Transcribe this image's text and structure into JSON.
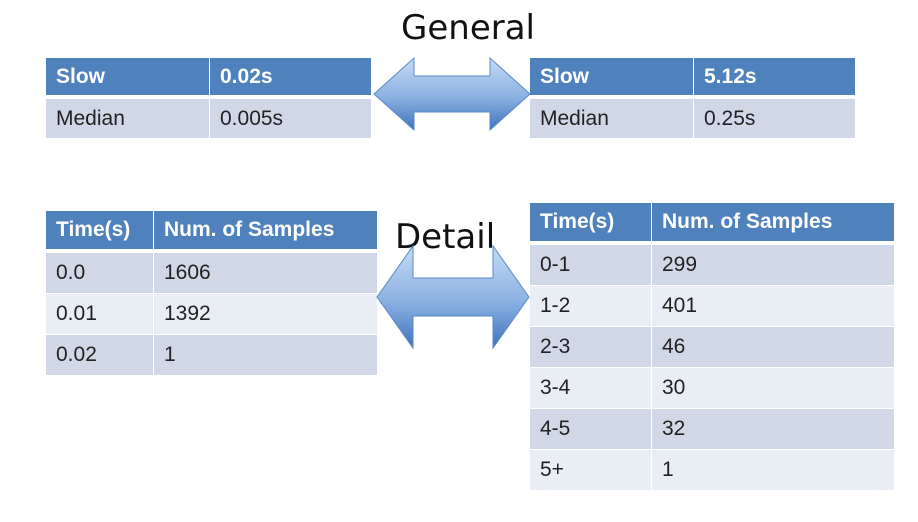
{
  "general": {
    "title": "General",
    "left_table": {
      "header": [
        "Slow",
        "0.02s"
      ],
      "rows": [
        [
          "Median",
          "0.005s"
        ]
      ]
    },
    "right_table": {
      "header": [
        "Slow",
        "5.12s"
      ],
      "rows": [
        [
          "Median",
          "0.25s"
        ]
      ]
    }
  },
  "detail": {
    "title": "Detail",
    "left_table": {
      "header": [
        "Time(s)",
        "Num. of Samples"
      ],
      "rows": [
        [
          "0.0",
          "1606"
        ],
        [
          "0.01",
          "1392"
        ],
        [
          "0.02",
          "1"
        ]
      ]
    },
    "right_table": {
      "header": [
        "Time(s)",
        "Num. of Samples"
      ],
      "rows": [
        [
          "0-1",
          "299"
        ],
        [
          "1-2",
          "401"
        ],
        [
          "2-3",
          "46"
        ],
        [
          "3-4",
          "30"
        ],
        [
          "4-5",
          "32"
        ],
        [
          "5+",
          "1"
        ]
      ]
    }
  },
  "colors": {
    "header_blue": "#4f81bd",
    "row_odd": "#d0d8e8",
    "row_even": "#e9edf4",
    "arrow_light": "#c6dbf3",
    "arrow_dark": "#3f73bd"
  },
  "icons": [
    "double-arrow-icon"
  ]
}
